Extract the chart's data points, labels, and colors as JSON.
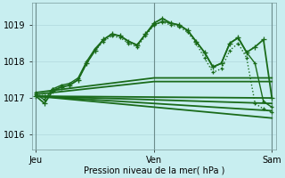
{
  "bg_color": "#c8eef0",
  "grid_color": "#b0d8dc",
  "line_color": "#1a6b1a",
  "xlabel": "Pression niveau de la mer( hPa )",
  "xtick_labels": [
    "Jeu",
    "Ven",
    "Sam"
  ],
  "xtick_positions": [
    0,
    14,
    28
  ],
  "ytick_values": [
    1016,
    1017,
    1018,
    1019
  ],
  "ylim": [
    1015.6,
    1019.6
  ],
  "xlim": [
    -0.5,
    28.5
  ],
  "series": [
    {
      "x": [
        0,
        1,
        2,
        3,
        4,
        5,
        6,
        7,
        8,
        9,
        10,
        11,
        12,
        13,
        14,
        15,
        16,
        17,
        18,
        19,
        20,
        21,
        22,
        23,
        24,
        25,
        26,
        27,
        28
      ],
      "y": [
        1017.05,
        1016.85,
        1017.2,
        1017.3,
        1017.35,
        1017.5,
        1017.95,
        1018.3,
        1018.6,
        1018.75,
        1018.7,
        1018.55,
        1018.45,
        1018.75,
        1019.05,
        1019.18,
        1019.05,
        1019.0,
        1018.85,
        1018.55,
        1018.25,
        1017.85,
        1017.95,
        1018.5,
        1018.65,
        1018.25,
        1018.4,
        1018.6,
        1017.0
      ],
      "marker": "+",
      "linestyle": "-",
      "linewidth": 1.3,
      "markersize": 4.5
    },
    {
      "x": [
        0,
        1,
        2,
        3,
        4,
        5,
        6,
        7,
        8,
        9,
        10,
        11,
        12,
        13,
        14,
        15,
        16,
        17,
        18,
        19,
        20,
        21,
        22,
        23,
        24,
        25,
        26,
        27,
        28
      ],
      "y": [
        1017.1,
        1016.95,
        1017.25,
        1017.35,
        1017.4,
        1017.55,
        1018.0,
        1018.35,
        1018.6,
        1018.75,
        1018.7,
        1018.55,
        1018.45,
        1018.75,
        1019.0,
        1019.1,
        1019.05,
        1019.0,
        1018.85,
        1018.55,
        1018.25,
        1017.85,
        1017.95,
        1018.5,
        1018.65,
        1018.25,
        1017.95,
        1016.9,
        1016.75
      ],
      "marker": "+",
      "linestyle": "-",
      "linewidth": 1.0,
      "markersize": 3.5
    },
    {
      "x": [
        0,
        1,
        2,
        3,
        4,
        5,
        6,
        7,
        8,
        9,
        10,
        11,
        12,
        13,
        14,
        15,
        16,
        17,
        18,
        19,
        20,
        21,
        22,
        23,
        24,
        25,
        26,
        27,
        28
      ],
      "y": [
        1017.15,
        1017.05,
        1017.25,
        1017.3,
        1017.35,
        1017.5,
        1017.95,
        1018.3,
        1018.55,
        1018.7,
        1018.65,
        1018.5,
        1018.4,
        1018.7,
        1019.0,
        1019.08,
        1019.0,
        1018.95,
        1018.8,
        1018.5,
        1018.1,
        1017.7,
        1017.8,
        1018.3,
        1018.5,
        1018.1,
        1016.85,
        1016.7,
        1016.6
      ],
      "marker": "+",
      "linestyle": ":",
      "linewidth": 1.0,
      "markersize": 3.5
    },
    {
      "x": [
        0,
        14,
        28
      ],
      "y": [
        1017.15,
        1017.55,
        1017.55
      ],
      "marker": null,
      "linestyle": "-",
      "linewidth": 1.3,
      "markersize": 0
    },
    {
      "x": [
        0,
        14,
        28
      ],
      "y": [
        1017.1,
        1017.45,
        1017.45
      ],
      "marker": null,
      "linestyle": "-",
      "linewidth": 1.3,
      "markersize": 0
    },
    {
      "x": [
        0,
        28
      ],
      "y": [
        1017.05,
        1017.0
      ],
      "marker": null,
      "linestyle": "-",
      "linewidth": 1.3,
      "markersize": 0
    },
    {
      "x": [
        0,
        28
      ],
      "y": [
        1017.05,
        1016.85
      ],
      "marker": null,
      "linestyle": "-",
      "linewidth": 1.3,
      "markersize": 0
    },
    {
      "x": [
        0,
        28
      ],
      "y": [
        1017.05,
        1016.65
      ],
      "marker": null,
      "linestyle": "-",
      "linewidth": 1.3,
      "markersize": 0
    },
    {
      "x": [
        0,
        28
      ],
      "y": [
        1017.05,
        1016.45
      ],
      "marker": null,
      "linestyle": "-",
      "linewidth": 1.3,
      "markersize": 0
    }
  ],
  "vlines": [
    {
      "x": 0,
      "color": "#6b8b8b",
      "lw": 0.8
    },
    {
      "x": 14,
      "color": "#6b8b8b",
      "lw": 0.8
    },
    {
      "x": 28,
      "color": "#6b8b8b",
      "lw": 0.8
    }
  ]
}
